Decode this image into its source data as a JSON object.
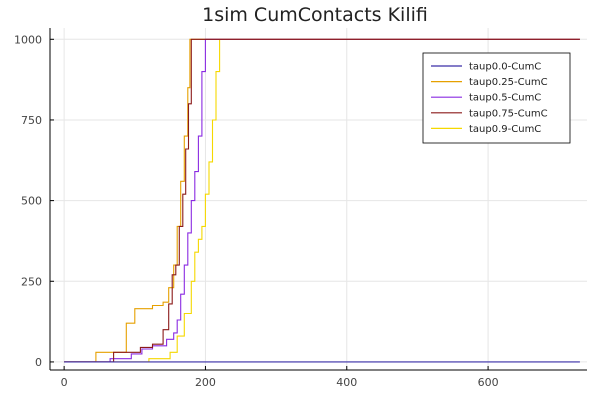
{
  "chart_data": {
    "type": "line",
    "title": "1sim CumContacts Kilifi",
    "xlabel": "",
    "ylabel": "",
    "xlim": [
      -20,
      740
    ],
    "ylim": [
      -25,
      1035
    ],
    "xticks": [
      0,
      200,
      400,
      600
    ],
    "yticks": [
      0,
      250,
      500,
      750,
      1000
    ],
    "grid": true,
    "legend_position": "top-right",
    "series": [
      {
        "name": "taup0.0-CumC",
        "color": "#3a2fa8",
        "x": [
          0,
          730
        ],
        "y": [
          0,
          0
        ]
      },
      {
        "name": "taup0.25-CumC",
        "color": "#e6a000",
        "x": [
          0,
          45,
          45,
          88,
          88,
          100,
          100,
          125,
          125,
          140,
          140,
          148,
          148,
          155,
          155,
          160,
          160,
          165,
          165,
          170,
          170,
          175,
          175,
          178,
          178,
          730
        ],
        "y": [
          0,
          0,
          30,
          30,
          120,
          120,
          165,
          165,
          175,
          175,
          185,
          185,
          230,
          230,
          300,
          300,
          420,
          420,
          560,
          560,
          700,
          700,
          850,
          850,
          1000,
          1000
        ]
      },
      {
        "name": "taup0.5-CumC",
        "color": "#8a2be2",
        "x": [
          0,
          65,
          65,
          95,
          95,
          110,
          110,
          125,
          125,
          145,
          145,
          155,
          155,
          160,
          160,
          165,
          165,
          170,
          170,
          175,
          175,
          180,
          180,
          185,
          185,
          190,
          190,
          195,
          195,
          200,
          200,
          730
        ],
        "y": [
          0,
          0,
          10,
          10,
          25,
          25,
          40,
          40,
          50,
          50,
          70,
          70,
          90,
          90,
          130,
          130,
          210,
          210,
          300,
          300,
          400,
          400,
          500,
          500,
          590,
          590,
          700,
          700,
          900,
          900,
          1000,
          1000
        ]
      },
      {
        "name": "taup0.75-CumC",
        "color": "#8b1a1a",
        "x": [
          0,
          70,
          70,
          108,
          108,
          125,
          125,
          140,
          140,
          148,
          148,
          153,
          153,
          158,
          158,
          163,
          163,
          168,
          168,
          172,
          172,
          176,
          176,
          180,
          180,
          730
        ],
        "y": [
          0,
          0,
          30,
          30,
          45,
          45,
          55,
          55,
          100,
          100,
          180,
          180,
          270,
          270,
          300,
          300,
          420,
          420,
          520,
          520,
          660,
          660,
          800,
          800,
          1000,
          1000
        ]
      },
      {
        "name": "taup0.9-CumC",
        "color": "#f5d800",
        "x": [
          0,
          120,
          120,
          150,
          150,
          160,
          160,
          170,
          170,
          180,
          180,
          185,
          185,
          190,
          190,
          195,
          195,
          200,
          200,
          205,
          205,
          210,
          210,
          215,
          215,
          220,
          220,
          730
        ],
        "y": [
          0,
          0,
          10,
          10,
          30,
          30,
          80,
          80,
          150,
          150,
          250,
          250,
          340,
          340,
          380,
          380,
          420,
          420,
          520,
          520,
          620,
          620,
          750,
          750,
          900,
          900,
          1000,
          1000
        ]
      }
    ]
  }
}
